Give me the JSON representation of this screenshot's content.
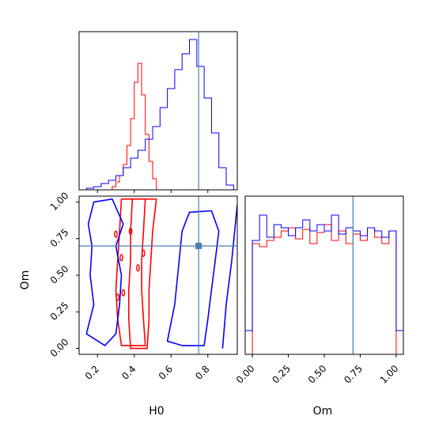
{
  "chart_data": [
    {
      "type": "histogram",
      "panel": "H0 marginal",
      "x_ticks": [
        "0.2",
        "0.4",
        "0.6",
        "0.8"
      ],
      "xlim": [
        0.1,
        0.96
      ],
      "truth": 0.75,
      "series": [
        {
          "color": "#ff0000",
          "bins_x": [
            0.26,
            0.28,
            0.3,
            0.32,
            0.34,
            0.36,
            0.38,
            0.4,
            0.42,
            0.44,
            0.46,
            0.48,
            0.5,
            0.52
          ],
          "values": [
            0.0,
            0.02,
            0.05,
            0.09,
            0.16,
            0.28,
            0.45,
            0.68,
            0.8,
            0.6,
            0.35,
            0.18,
            0.07,
            0.0
          ]
        },
        {
          "color": "#0000ff",
          "bins_x": [
            0.1,
            0.14,
            0.18,
            0.22,
            0.26,
            0.3,
            0.34,
            0.38,
            0.42,
            0.46,
            0.5,
            0.54,
            0.58,
            0.62,
            0.66,
            0.7,
            0.74,
            0.78,
            0.82,
            0.86,
            0.9,
            0.94
          ],
          "values": [
            0.0,
            0.01,
            0.02,
            0.04,
            0.06,
            0.09,
            0.14,
            0.2,
            0.25,
            0.32,
            0.4,
            0.52,
            0.64,
            0.76,
            0.86,
            0.95,
            0.78,
            0.58,
            0.36,
            0.14,
            0.03,
            0.0
          ]
        }
      ]
    },
    {
      "type": "contour",
      "panel": "H0 vs Om joint",
      "xlabel": "H0",
      "ylabel": "Om",
      "x_ticks": [
        "0.2",
        "0.4",
        "0.6",
        "0.8"
      ],
      "y_ticks": [
        "0.00",
        "0.25",
        "0.50",
        "0.75",
        "1.00"
      ],
      "xlim": [
        0.1,
        0.96
      ],
      "ylim": [
        -0.04,
        1.04
      ],
      "truth": [
        0.75,
        0.7
      ],
      "series": [
        {
          "color": "#ff0000",
          "contours": [
            [
              [
                0.33,
                0.02
              ],
              [
                0.31,
                0.2
              ],
              [
                0.3,
                0.4
              ],
              [
                0.31,
                0.6
              ],
              [
                0.32,
                0.8
              ],
              [
                0.33,
                1.02
              ],
              [
                0.46,
                1.02
              ],
              [
                0.45,
                0.8
              ],
              [
                0.44,
                0.6
              ],
              [
                0.44,
                0.4
              ],
              [
                0.45,
                0.2
              ],
              [
                0.46,
                0.02
              ]
            ],
            [
              [
                0.38,
                0.0
              ],
              [
                0.37,
                0.2
              ],
              [
                0.37,
                0.4
              ],
              [
                0.38,
                0.6
              ],
              [
                0.38,
                0.8
              ],
              [
                0.39,
                1.02
              ],
              [
                0.52,
                1.02
              ],
              [
                0.5,
                0.8
              ],
              [
                0.49,
                0.6
              ],
              [
                0.48,
                0.4
              ],
              [
                0.48,
                0.2
              ],
              [
                0.47,
                0.0
              ]
            ]
          ]
        },
        {
          "color": "#0000ff",
          "contours": [
            [
              [
                0.14,
                0.1
              ],
              [
                0.18,
                0.3
              ],
              [
                0.16,
                0.5
              ],
              [
                0.17,
                0.7
              ],
              [
                0.15,
                0.85
              ],
              [
                0.18,
                1.0
              ],
              [
                0.28,
                1.02
              ],
              [
                0.34,
                0.85
              ],
              [
                0.3,
                0.7
              ],
              [
                0.33,
                0.5
              ],
              [
                0.32,
                0.3
              ],
              [
                0.3,
                0.1
              ],
              [
                0.24,
                0.02
              ]
            ],
            [
              [
                0.58,
                0.05
              ],
              [
                0.62,
                0.3
              ],
              [
                0.64,
                0.55
              ],
              [
                0.66,
                0.8
              ],
              [
                0.7,
                0.93
              ],
              [
                0.82,
                0.94
              ],
              [
                0.86,
                0.8
              ],
              [
                0.84,
                0.6
              ],
              [
                0.82,
                0.4
              ],
              [
                0.8,
                0.2
              ],
              [
                0.78,
                0.02
              ],
              [
                0.66,
                0.02
              ]
            ],
            [
              [
                0.88,
                0.0
              ],
              [
                0.9,
                0.3
              ],
              [
                0.93,
                0.6
              ],
              [
                0.96,
                0.98
              ],
              [
                0.97,
                0.98
              ]
            ]
          ]
        }
      ]
    },
    {
      "type": "histogram",
      "panel": "Om marginal",
      "xlabel": "Om",
      "x_ticks": [
        "0.00",
        "0.25",
        "0.50",
        "0.75",
        "1.00"
      ],
      "xlim": [
        -0.05,
        1.05
      ],
      "truth": 0.7,
      "series": [
        {
          "color": "#ff0000",
          "bins_x": [
            0.0,
            0.05,
            0.1,
            0.15,
            0.2,
            0.25,
            0.3,
            0.35,
            0.4,
            0.45,
            0.5,
            0.55,
            0.6,
            0.65,
            0.7,
            0.75,
            0.8,
            0.85,
            0.9,
            0.95
          ],
          "values": [
            0.7,
            0.68,
            0.72,
            0.74,
            0.78,
            0.8,
            0.73,
            0.79,
            0.7,
            0.77,
            0.82,
            0.72,
            0.78,
            0.7,
            0.76,
            0.72,
            0.8,
            0.74,
            0.7,
            0.78
          ]
        },
        {
          "color": "#0000ff",
          "bins_x": [
            -0.05,
            0.0,
            0.05,
            0.1,
            0.15,
            0.2,
            0.25,
            0.3,
            0.35,
            0.4,
            0.45,
            0.5,
            0.55,
            0.6,
            0.65,
            0.7,
            0.75,
            0.8,
            0.85,
            0.9,
            0.95,
            1.0
          ],
          "values": [
            0.15,
            0.72,
            0.88,
            0.74,
            0.82,
            0.8,
            0.75,
            0.8,
            0.85,
            0.78,
            0.82,
            0.78,
            0.88,
            0.76,
            0.8,
            0.78,
            0.75,
            0.8,
            0.78,
            0.74,
            0.78,
            0.15
          ]
        }
      ]
    }
  ]
}
